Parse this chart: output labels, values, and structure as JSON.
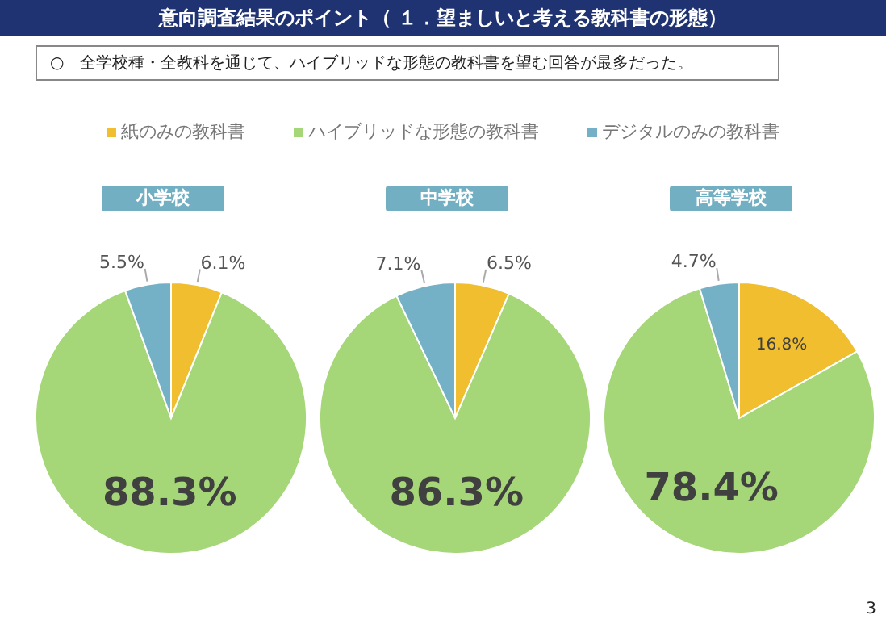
{
  "chart_data": [
    {
      "type": "other",
      "title": "意向調査結果のポイント（ １．望ましいと考える教科書の形態）",
      "subtitle": "○　全学校種・全教科を通じて、ハイブリッドな形態の教科書を望む回答が最多だった。",
      "annotations": [
        "3"
      ]
    },
    {
      "type": "pie",
      "title": "小学校",
      "categories": [
        "紙のみの教科書",
        "ハイブリッドな形態の教科書",
        "デジタルのみの教科書"
      ],
      "values": [
        6.1,
        88.3,
        5.5
      ],
      "colors": [
        "#f0be2e",
        "#a5d677",
        "#74b1c6"
      ],
      "value_labels": [
        "6.1%",
        "88.3%",
        "5.5%"
      ],
      "legend": "top"
    },
    {
      "type": "pie",
      "title": "中学校",
      "categories": [
        null,
        null,
        null
      ],
      "values": [
        6.5,
        86.3,
        7.1
      ],
      "colors": [
        "#f0be2e",
        "#a5d677",
        "#74b1c6"
      ],
      "value_labels": [
        "6.5%",
        "86.3%",
        "7.1%"
      ]
    },
    {
      "type": "pie",
      "title": "高等学校",
      "categories": [
        null,
        null,
        null
      ],
      "values": [
        16.8,
        78.4,
        4.7
      ],
      "colors": [
        "#f0be2e",
        "#a5d677",
        "#74b1c6"
      ],
      "value_labels": [
        "16.8%",
        "78.4%",
        "4.7%"
      ]
    }
  ]
}
